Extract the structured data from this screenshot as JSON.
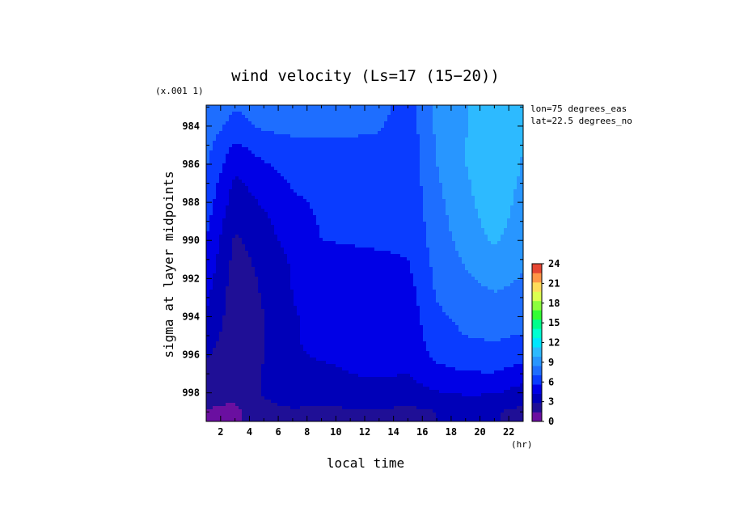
{
  "chart_data": {
    "type": "heatmap",
    "title": "wind velocity (Ls=17 (15−20))",
    "scale_note": "(x.001 1)",
    "xlabel": "local time",
    "xunit": "(hr)",
    "ylabel": "sigma at layer midpoints",
    "xlim": [
      1,
      23
    ],
    "ylim": [
      999.5,
      982.9
    ],
    "x_ticks": [
      2,
      4,
      6,
      8,
      10,
      12,
      14,
      16,
      18,
      20,
      22
    ],
    "y_ticks": [
      984,
      986,
      988,
      990,
      992,
      994,
      996,
      998
    ],
    "y_tick_labels": [
      "984",
      "986",
      "988",
      "990",
      "992",
      "994",
      "996",
      "998"
    ],
    "annotations": [
      "lon=75 degrees_eas",
      "lat=22.5 degrees_no"
    ],
    "colorbar": {
      "ticks": [
        0,
        3,
        6,
        9,
        12,
        15,
        18,
        21,
        24
      ],
      "levels": [
        0,
        1.5,
        3,
        4.5,
        6,
        7.5,
        9,
        10.5,
        12,
        13.5,
        15,
        16.5,
        18,
        19.5,
        21,
        22.5,
        24
      ],
      "colors": [
        "#6a0fa0",
        "#1f0f96",
        "#0000b8",
        "#0000e6",
        "#0a3cff",
        "#1e6eff",
        "#2896ff",
        "#2dbaff",
        "#00e6ff",
        "#00ffd2",
        "#00ff8c",
        "#32ff32",
        "#8cff3c",
        "#dcff50",
        "#ffdc5a",
        "#ff9646",
        "#e64632"
      ]
    },
    "x": [
      1,
      3,
      5,
      7,
      9,
      11,
      13,
      15,
      17,
      19,
      21,
      23
    ],
    "y": [
      983,
      984,
      985,
      986,
      987,
      988,
      989,
      990,
      991,
      992,
      993,
      994,
      995,
      996,
      997,
      998,
      999
    ],
    "z": [
      [
        8.5,
        7.6,
        7.9,
        8.0,
        8.3,
        8.2,
        8.0,
        6.8,
        9.5,
        10.4,
        11.2,
        10.6
      ],
      [
        8.3,
        7.0,
        7.8,
        7.9,
        8.1,
        7.9,
        7.7,
        6.6,
        9.3,
        10.4,
        11.4,
        10.6
      ],
      [
        8.0,
        5.8,
        6.7,
        7.2,
        7.1,
        7.2,
        7.1,
        6.5,
        9.1,
        10.5,
        11.6,
        10.5
      ],
      [
        7.6,
        4.9,
        5.9,
        6.5,
        6.6,
        6.8,
        6.8,
        6.4,
        9.0,
        10.5,
        11.6,
        10.4
      ],
      [
        7.2,
        4.2,
        5.2,
        6.1,
        6.4,
        6.5,
        6.6,
        6.4,
        8.8,
        10.3,
        11.5,
        10.2
      ],
      [
        6.8,
        3.7,
        4.7,
        5.8,
        6.2,
        6.3,
        6.4,
        6.3,
        8.6,
        10.1,
        11.4,
        10.0
      ],
      [
        6.4,
        3.2,
        4.2,
        5.5,
        6.1,
        6.2,
        6.3,
        6.3,
        8.4,
        9.9,
        11.1,
        9.8
      ],
      [
        6.0,
        2.8,
        3.8,
        5.2,
        6.0,
        6.1,
        6.2,
        6.2,
        8.2,
        9.6,
        10.7,
        9.5
      ],
      [
        5.6,
        2.5,
        3.4,
        4.7,
        5.6,
        5.7,
        5.8,
        6.0,
        8.0,
        9.2,
        10.1,
        9.2
      ],
      [
        5.2,
        2.3,
        3.2,
        4.6,
        5.1,
        5.3,
        5.4,
        5.6,
        7.8,
        8.8,
        9.5,
        8.9
      ],
      [
        4.8,
        2.2,
        3.1,
        4.5,
        5.0,
        5.1,
        5.2,
        5.3,
        7.6,
        8.3,
        8.8,
        8.5
      ],
      [
        4.4,
        2.1,
        3.0,
        4.4,
        4.9,
        5.0,
        5.0,
        5.1,
        7.2,
        7.9,
        8.2,
        8.1
      ],
      [
        3.9,
        2.0,
        3.0,
        4.4,
        4.8,
        4.9,
        4.9,
        5.0,
        6.9,
        7.5,
        7.7,
        7.4
      ],
      [
        3.2,
        1.9,
        3.0,
        4.4,
        4.6,
        4.7,
        4.8,
        4.8,
        6.4,
        6.9,
        7.1,
        6.6
      ],
      [
        2.6,
        1.9,
        3.1,
        4.3,
        4.3,
        4.5,
        4.6,
        4.5,
        5.5,
        5.9,
        5.9,
        5.2
      ],
      [
        2.1,
        1.8,
        3.2,
        4.0,
        3.8,
        4.1,
        4.2,
        3.9,
        4.4,
        4.7,
        4.6,
        3.9
      ],
      [
        1.4,
        1.2,
        2.4,
        2.8,
        2.5,
        2.8,
        2.8,
        2.6,
        3.0,
        3.2,
        3.1,
        2.6
      ]
    ]
  }
}
